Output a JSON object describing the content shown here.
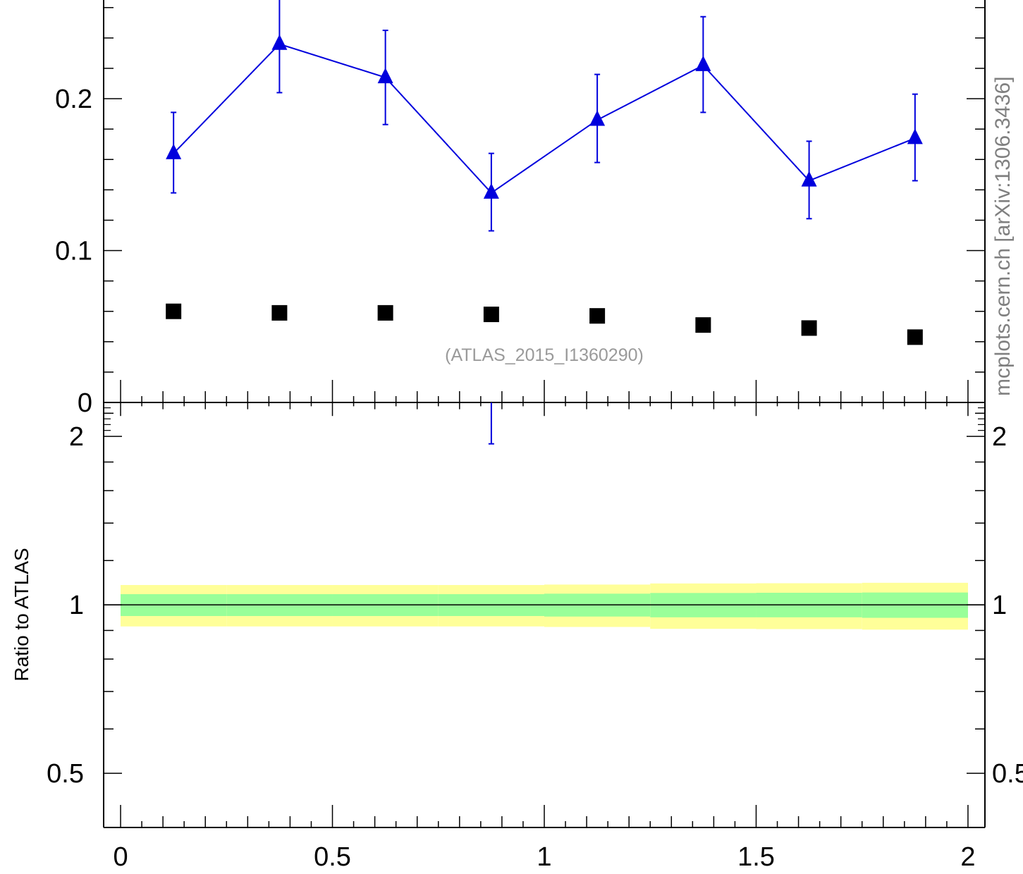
{
  "chart_data": [
    {
      "type": "scatter",
      "panel": "main",
      "xlim": [
        -0.04,
        2.04
      ],
      "ylim": [
        0,
        0.265
      ],
      "yticks": [
        0,
        0.1,
        0.2
      ],
      "ytick_labels": [
        "0",
        "0.1",
        "0.2"
      ],
      "reference_label": "(ATLAS_2015_I1360290)",
      "series": [
        {
          "color": "#0000dd",
          "marker": "triangle",
          "connected": true,
          "x": [
            0.125,
            0.375,
            0.625,
            0.875,
            1.125,
            1.375,
            1.625,
            1.875
          ],
          "y": [
            0.164,
            0.236,
            0.214,
            0.138,
            0.186,
            0.222,
            0.146,
            0.174
          ],
          "err_low": [
            0.026,
            0.032,
            0.031,
            0.025,
            0.028,
            0.031,
            0.025,
            0.028
          ],
          "err_high": [
            0.027,
            0.034,
            0.031,
            0.026,
            0.03,
            0.032,
            0.026,
            0.029
          ]
        },
        {
          "color": "#000000",
          "marker": "square",
          "connected": false,
          "x": [
            0.125,
            0.375,
            0.625,
            0.875,
            1.125,
            1.375,
            1.625,
            1.875
          ],
          "y": [
            0.06,
            0.059,
            0.059,
            0.058,
            0.057,
            0.051,
            0.049,
            0.043
          ]
        }
      ]
    },
    {
      "type": "scatter",
      "panel": "ratio",
      "ylabel": "Ratio to ATLAS",
      "xlim": [
        -0.04,
        2.04
      ],
      "ylim": [
        0.4,
        2.3
      ],
      "yscale": "log",
      "yticks": [
        0.5,
        1,
        2
      ],
      "ytick_labels": [
        "0.5",
        "1",
        "2"
      ],
      "xticks": [
        0,
        0.5,
        1,
        1.5,
        2
      ],
      "xtick_labels": [
        "0",
        "0.5",
        "1",
        "1.5",
        "2"
      ],
      "bands": {
        "x_edges": [
          0,
          0.25,
          0.5,
          0.75,
          1.0,
          1.25,
          1.5,
          1.75,
          2.0
        ],
        "inner_color": "#99ff99",
        "outer_color": "#ffff99",
        "inner": [
          [
            0.955,
            1.045
          ],
          [
            0.955,
            1.045
          ],
          [
            0.955,
            1.045
          ],
          [
            0.955,
            1.045
          ],
          [
            0.953,
            1.047
          ],
          [
            0.95,
            1.05
          ],
          [
            0.95,
            1.051
          ],
          [
            0.948,
            1.052
          ]
        ],
        "outer": [
          [
            0.915,
            1.085
          ],
          [
            0.915,
            1.085
          ],
          [
            0.915,
            1.085
          ],
          [
            0.915,
            1.085
          ],
          [
            0.913,
            1.087
          ],
          [
            0.906,
            1.092
          ],
          [
            0.905,
            1.093
          ],
          [
            0.903,
            1.095
          ]
        ]
      },
      "series": [
        {
          "color": "#0000dd",
          "marker": "triangle",
          "x": [
            0.875
          ],
          "y": [
            2.36
          ],
          "err_low": [
            0.42
          ],
          "err_high": [
            0.0
          ]
        }
      ]
    }
  ],
  "watermark": "mcplots.cern.ch [arXiv:1306.3436]"
}
